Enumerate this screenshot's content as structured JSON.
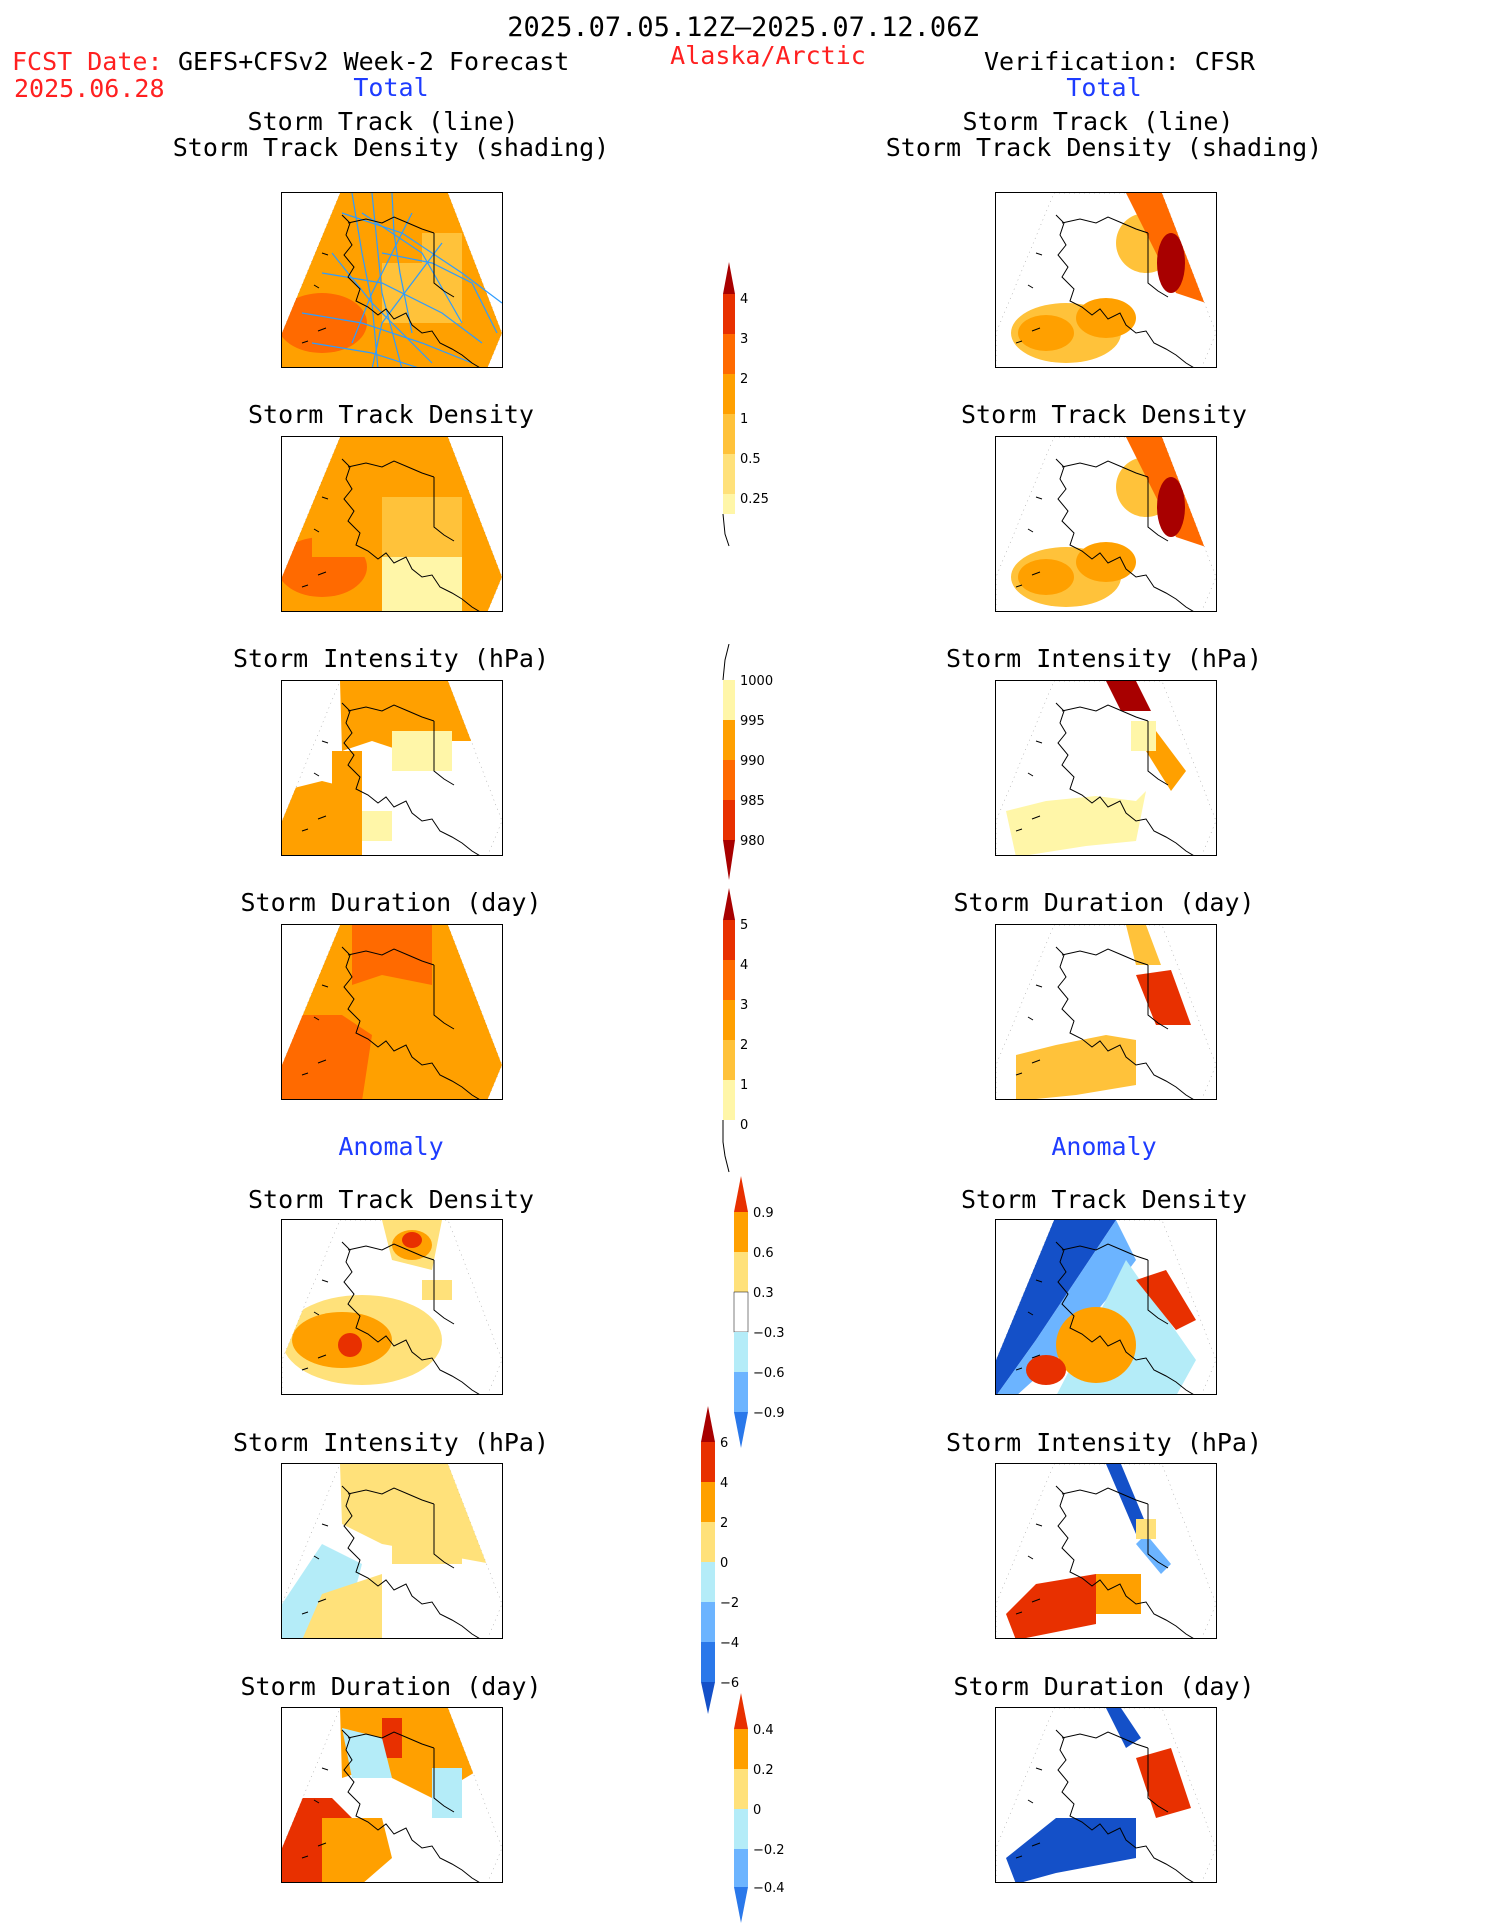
{
  "header": {
    "period": "2025.07.05.12Z–2025.07.12.06Z",
    "fcst_label": "FCST Date:",
    "fcst_model": "GEFS+CFSv2 Week-2 Forecast",
    "fcst_date": "2025.06.28",
    "region": "Alaska/Arctic",
    "verification": "Verification: CFSR"
  },
  "columns": {
    "left_section_total": "Total",
    "right_section_total": "Total",
    "left_section_anomaly": "Anomaly",
    "right_section_anomaly": "Anomaly"
  },
  "panel_titles": {
    "track_line": "Storm Track (line)",
    "track_shading": "Storm Track Density (shading)",
    "density": "Storm Track Density",
    "intensity": "Storm Intensity (hPa)",
    "duration": "Storm Duration (day)"
  },
  "colorbars": {
    "density_total": [
      "4",
      "3",
      "2",
      "1",
      "0.5",
      "0.25"
    ],
    "intensity_total": [
      "1000",
      "995",
      "990",
      "985",
      "980"
    ],
    "duration_total": [
      "5",
      "4",
      "3",
      "2",
      "1",
      "0"
    ],
    "density_anomaly": [
      "0.9",
      "0.6",
      "0.3",
      "−0.3",
      "−0.6",
      "−0.9"
    ],
    "intensity_anomaly": [
      "6",
      "4",
      "2",
      "0",
      "−2",
      "−4",
      "−6"
    ],
    "duration_anomaly": [
      "0.4",
      "0.2",
      "0",
      "−0.2",
      "−0.4"
    ]
  },
  "colors": {
    "pale_yellow": "#fff6a8",
    "yellow": "#ffe17a",
    "light_orange": "#ffc23a",
    "orange": "#ffa000",
    "dark_orange": "#ff6a00",
    "red": "#e83000",
    "dark_red": "#a80000",
    "light_blue": "#b4ecf8",
    "mid_blue": "#6cb4ff",
    "blue": "#2a78ea",
    "dark_blue": "#1450c8",
    "track_line": "#2e9cff"
  }
}
